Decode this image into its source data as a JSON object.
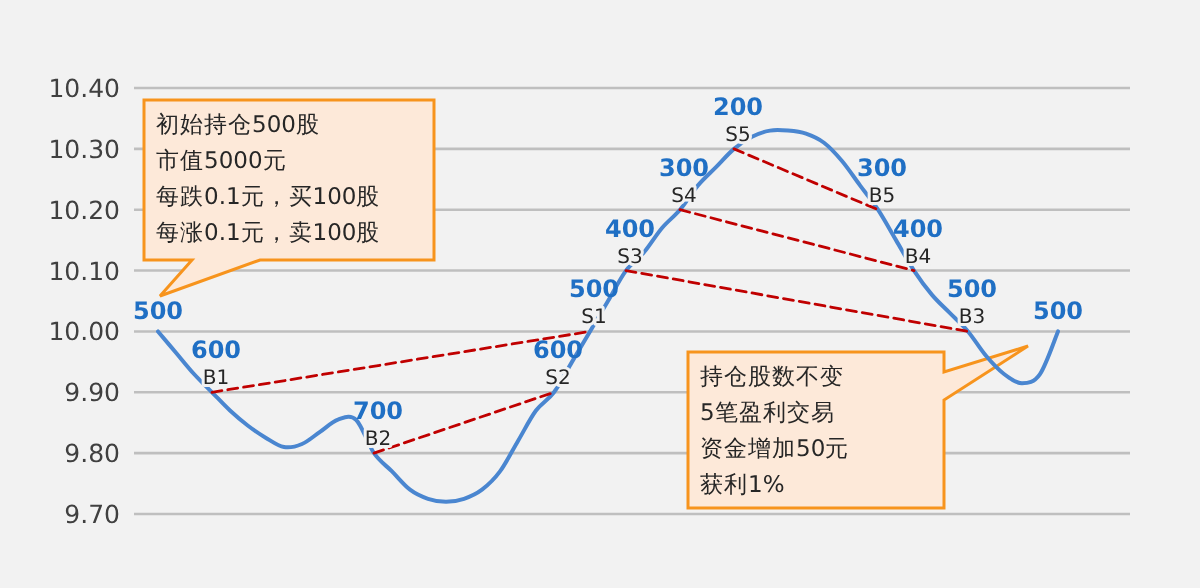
{
  "chart_data": {
    "type": "line",
    "categories": [
      null,
      null,
      null,
      null,
      null,
      null,
      null,
      null,
      null,
      null,
      null,
      null,
      null,
      null,
      null,
      null,
      null,
      null,
      null,
      null,
      null,
      null,
      null,
      null,
      null,
      null,
      null,
      null,
      null,
      null,
      null,
      null,
      null,
      null,
      null,
      null,
      null,
      null,
      null,
      null,
      null,
      null,
      null,
      null,
      null,
      null,
      null,
      null,
      null,
      null,
      null
    ],
    "ylim": [
      9.7,
      10.4
    ],
    "yticks": [
      {
        "value": 9.7,
        "label": "9.70"
      },
      {
        "value": 9.8,
        "label": "9.80"
      },
      {
        "value": 9.9,
        "label": "9.90"
      },
      {
        "value": 10.0,
        "label": "10.00"
      },
      {
        "value": 10.1,
        "label": "10.10"
      },
      {
        "value": 10.2,
        "label": "10.20"
      },
      {
        "value": 10.3,
        "label": "10.30"
      },
      {
        "value": 10.4,
        "label": "10.40"
      }
    ],
    "grid": "y",
    "tick_labels": "y",
    "marker": "none",
    "series": [
      {
        "color": "#4a86d0",
        "line_style": "solid",
        "values": [
          10.0,
          9.965,
          9.93,
          9.9,
          9.87,
          9.845,
          9.825,
          9.81,
          9.815,
          9.835,
          9.855,
          9.855,
          9.8,
          9.77,
          9.74,
          9.725,
          9.72,
          9.725,
          9.74,
          9.77,
          9.82,
          9.87,
          9.9,
          9.95,
          10.0,
          10.05,
          10.1,
          10.13,
          10.17,
          10.2,
          10.24,
          10.27,
          10.3,
          10.32,
          10.33,
          10.33,
          10.325,
          10.31,
          10.28,
          10.24,
          10.2,
          10.15,
          10.1,
          10.06,
          10.03,
          10.0,
          9.96,
          9.93,
          9.915,
          9.93,
          10.0
        ],
        "marker": "none"
      },
      {
        "color": "#c00000",
        "line_style": "dashed",
        "values": [
          null,
          null,
          null,
          9.9,
          null,
          null,
          null,
          null,
          null,
          null,
          null,
          null,
          null,
          null,
          null,
          null,
          null,
          null,
          null,
          null,
          null,
          null,
          null,
          null,
          10.0,
          null,
          null,
          null,
          null,
          null,
          null,
          null,
          null,
          null,
          null,
          null,
          null,
          null,
          null,
          null,
          null,
          null,
          null,
          null,
          null,
          null,
          null,
          null,
          null,
          null,
          null
        ],
        "value_labels": [
          null,
          null,
          null,
          "B1",
          null,
          null,
          null,
          null,
          null,
          null,
          null,
          null,
          null,
          null,
          null,
          null,
          null,
          null,
          null,
          null,
          null,
          null,
          null,
          null,
          "S1",
          null,
          null,
          null,
          null,
          null,
          null,
          null,
          null,
          null,
          null,
          null,
          null,
          null,
          null,
          null,
          null,
          null,
          null,
          null,
          null,
          null,
          null,
          null,
          null,
          null,
          null
        ]
      },
      {
        "color": "#c00000",
        "line_style": "dashed",
        "values": [
          null,
          null,
          null,
          null,
          null,
          null,
          null,
          null,
          null,
          null,
          null,
          null,
          9.8,
          null,
          null,
          null,
          null,
          null,
          null,
          null,
          null,
          null,
          9.9,
          null,
          null,
          null,
          null,
          null,
          null,
          null,
          null,
          null,
          null,
          null,
          null,
          null,
          null,
          null,
          null,
          null,
          null,
          null,
          null,
          null,
          null,
          null,
          null,
          null,
          null,
          null,
          null
        ],
        "value_labels": [
          null,
          null,
          null,
          null,
          null,
          null,
          null,
          null,
          null,
          null,
          null,
          null,
          "B2",
          null,
          null,
          null,
          null,
          null,
          null,
          null,
          null,
          null,
          "S2",
          null,
          null,
          null,
          null,
          null,
          null,
          null,
          null,
          null,
          null,
          null,
          null,
          null,
          null,
          null,
          null,
          null,
          null,
          null,
          null,
          null,
          null,
          null,
          null,
          null,
          null,
          null,
          null
        ]
      },
      {
        "color": "#c00000",
        "line_style": "dashed",
        "values": [
          null,
          null,
          null,
          null,
          null,
          null,
          null,
          null,
          null,
          null,
          null,
          null,
          null,
          null,
          null,
          null,
          null,
          null,
          null,
          null,
          null,
          null,
          null,
          null,
          null,
          null,
          10.1,
          null,
          null,
          null,
          null,
          null,
          null,
          null,
          null,
          null,
          null,
          null,
          null,
          null,
          null,
          null,
          null,
          null,
          null,
          10.0,
          null,
          null,
          null,
          null,
          null
        ],
        "value_labels": [
          null,
          null,
          null,
          null,
          null,
          null,
          null,
          null,
          null,
          null,
          null,
          null,
          null,
          null,
          null,
          null,
          null,
          null,
          null,
          null,
          null,
          null,
          null,
          null,
          null,
          null,
          "S3",
          null,
          null,
          null,
          null,
          null,
          null,
          null,
          null,
          null,
          null,
          null,
          null,
          null,
          null,
          null,
          null,
          null,
          null,
          "B3",
          null,
          null,
          null,
          null,
          null
        ]
      },
      {
        "color": "#c00000",
        "line_style": "dashed",
        "values": [
          null,
          null,
          null,
          null,
          null,
          null,
          null,
          null,
          null,
          null,
          null,
          null,
          null,
          null,
          null,
          null,
          null,
          null,
          null,
          null,
          null,
          null,
          null,
          null,
          null,
          null,
          null,
          null,
          null,
          10.2,
          null,
          null,
          null,
          null,
          null,
          null,
          null,
          null,
          null,
          null,
          null,
          null,
          10.1,
          null,
          null,
          null,
          null,
          null,
          null,
          null,
          null
        ],
        "value_labels": [
          null,
          null,
          null,
          null,
          null,
          null,
          null,
          null,
          null,
          null,
          null,
          null,
          null,
          null,
          null,
          null,
          null,
          null,
          null,
          null,
          null,
          null,
          null,
          null,
          null,
          null,
          null,
          null,
          null,
          "S4",
          null,
          null,
          null,
          null,
          null,
          null,
          null,
          null,
          null,
          null,
          null,
          null,
          "B4",
          null,
          null,
          null,
          null,
          null,
          null,
          null,
          null
        ]
      },
      {
        "color": "#c00000",
        "line_style": "dashed",
        "values": [
          null,
          null,
          null,
          null,
          null,
          null,
          null,
          null,
          null,
          null,
          null,
          null,
          null,
          null,
          null,
          null,
          null,
          null,
          null,
          null,
          null,
          null,
          null,
          null,
          null,
          null,
          null,
          null,
          null,
          null,
          null,
          null,
          10.3,
          null,
          null,
          null,
          null,
          null,
          null,
          null,
          10.2,
          null,
          null,
          null,
          null,
          null,
          null,
          null,
          null,
          null,
          null
        ],
        "value_labels": [
          null,
          null,
          null,
          null,
          null,
          null,
          null,
          null,
          null,
          null,
          null,
          null,
          null,
          null,
          null,
          null,
          null,
          null,
          null,
          null,
          null,
          null,
          null,
          null,
          null,
          null,
          null,
          null,
          null,
          null,
          null,
          null,
          "S5",
          null,
          null,
          null,
          null,
          null,
          null,
          null,
          "B5",
          null,
          null,
          null,
          null,
          null,
          null,
          null,
          null,
          null,
          null
        ]
      }
    ],
    "annotations": [
      "初始持仓500股",
      "市值5000元",
      "每跌0.1元，买100股",
      "每涨0.1元，卖100股",
      "持仓股数不变",
      "5笔盈利交易",
      "资金增加50元",
      "获利1%",
      "500",
      "600",
      "700",
      "600",
      "500",
      "400",
      "300",
      "200",
      "300",
      "400",
      "500",
      "500"
    ]
  }
}
